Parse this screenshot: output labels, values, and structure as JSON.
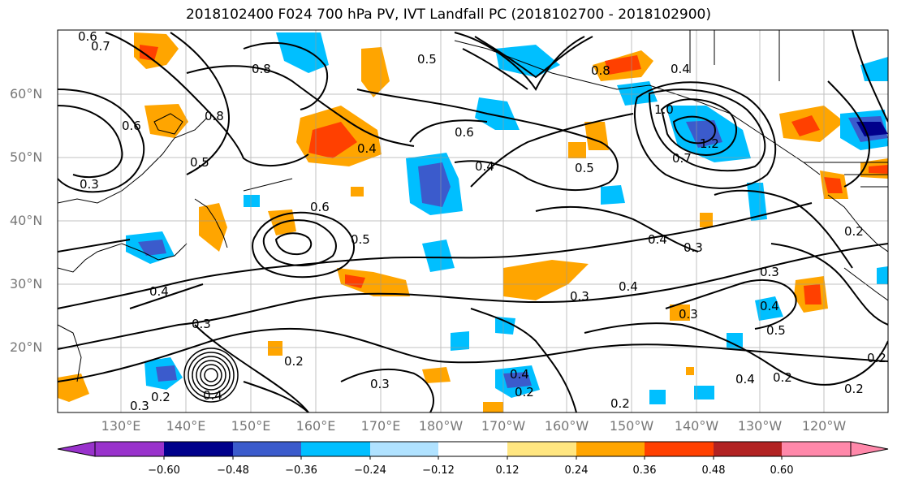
{
  "title": "2018102400 F024 700 hPa PV, IVT Landfall PC (2018102700 - 2018102900)",
  "lat_labels": [
    "60°N",
    "50°N",
    "40°N",
    "30°N",
    "20°N"
  ],
  "lon_labels": [
    "130°E",
    "140°E",
    "150°E",
    "160°E",
    "170°E",
    "180°W",
    "170°W",
    "160°W",
    "150°W",
    "140°W",
    "130°W",
    "120°W"
  ],
  "colorbar": {
    "ticks": [
      "−0.60",
      "−0.48",
      "−0.36",
      "−0.24",
      "−0.12",
      "0.12",
      "0.24",
      "0.36",
      "0.48",
      "0.60"
    ],
    "colors": [
      "#9932cc",
      "#00008b",
      "#3b5bcc",
      "#00bfff",
      "#b0e2ff",
      "#ffffff",
      "#ffe680",
      "#ffa500",
      "#ff4000",
      "#b22222",
      "#ff88aa"
    ]
  },
  "contour_labels": [
    {
      "text": "0.6"
    },
    {
      "text": "0.7"
    },
    {
      "text": "0.8"
    },
    {
      "text": "0.5"
    },
    {
      "text": "0.6"
    },
    {
      "text": "0.8"
    },
    {
      "text": "0.4"
    },
    {
      "text": "0.5"
    },
    {
      "text": "0.3"
    },
    {
      "text": "0.6"
    },
    {
      "text": "0.4"
    },
    {
      "text": "0.6"
    },
    {
      "text": "0.5"
    },
    {
      "text": "0.4"
    },
    {
      "text": "0.3"
    },
    {
      "text": "0.4"
    },
    {
      "text": "0.3"
    },
    {
      "text": "0.3"
    },
    {
      "text": "0.2"
    },
    {
      "text": "0.3"
    },
    {
      "text": "0.2"
    },
    {
      "text": "0.4"
    },
    {
      "text": "0.2"
    },
    {
      "text": "0.2"
    },
    {
      "text": "0.8"
    },
    {
      "text": "0.4"
    },
    {
      "text": "1.0"
    },
    {
      "text": "1.2"
    },
    {
      "text": "0.7"
    },
    {
      "text": "0.4"
    },
    {
      "text": "0.5"
    },
    {
      "text": "0.4"
    },
    {
      "text": "0.3"
    },
    {
      "text": "0.2"
    },
    {
      "text": "0.4"
    },
    {
      "text": "0.2"
    },
    {
      "text": "0.2"
    },
    {
      "text": "0.4"
    },
    {
      "text": "0.3"
    },
    {
      "text": "0.5"
    },
    {
      "text": "0.2"
    },
    {
      "text": "0.3"
    }
  ]
}
